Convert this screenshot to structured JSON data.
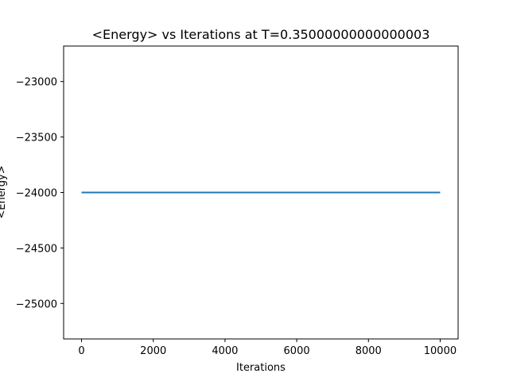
{
  "chart_data": {
    "type": "line",
    "title": "<Energy> vs Iterations at T=0.35000000000000003",
    "xlabel": "Iterations",
    "ylabel": "<Energy>",
    "xlim": [
      -500,
      10500
    ],
    "ylim": [
      -25320,
      -22680
    ],
    "x_ticks": [
      0,
      2000,
      4000,
      6000,
      8000,
      10000
    ],
    "y_ticks": [
      -23000,
      -23500,
      -24000,
      -24500,
      -25000
    ],
    "x_tick_labels": [
      "0",
      "2000",
      "4000",
      "6000",
      "8000",
      "10000"
    ],
    "y_tick_labels": [
      "−23000",
      "−23500",
      "−24000",
      "−24500",
      "−25000"
    ],
    "grid": false,
    "series": [
      {
        "color": "#1f77b4",
        "x": [
          0,
          10000
        ],
        "y": [
          -24000,
          -24000
        ]
      }
    ]
  }
}
